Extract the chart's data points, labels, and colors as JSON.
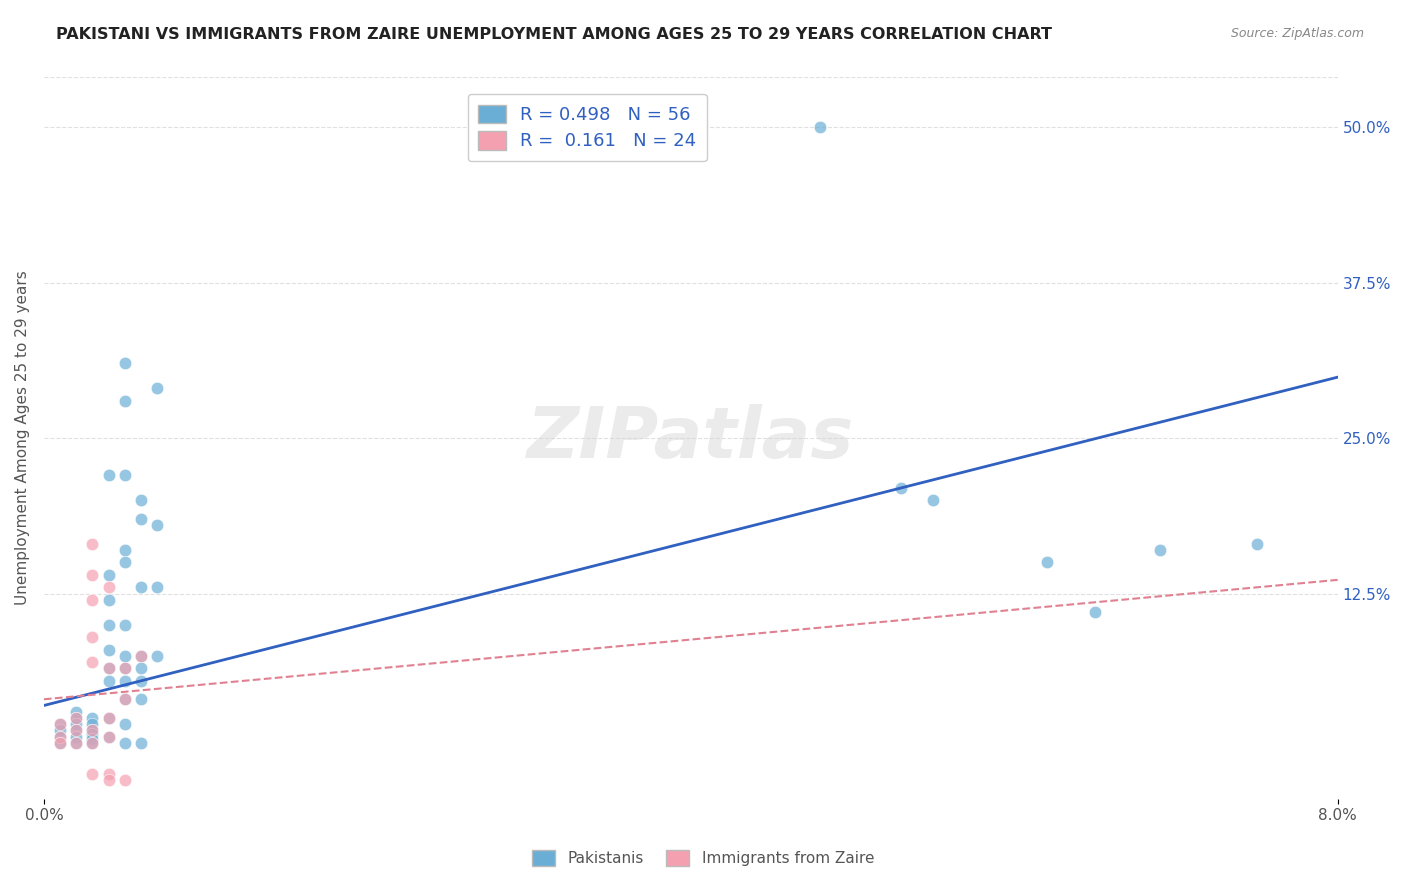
{
  "title": "PAKISTANI VS IMMIGRANTS FROM ZAIRE UNEMPLOYMENT AMONG AGES 25 TO 29 YEARS CORRELATION CHART",
  "source": "Source: ZipAtlas.com",
  "ylabel": "Unemployment Among Ages 25 to 29 years",
  "xlim": [
    0.0,
    0.08
  ],
  "ylim": [
    -0.04,
    0.54
  ],
  "ytick_labels": [
    "12.5%",
    "25.0%",
    "37.5%",
    "50.0%"
  ],
  "ytick_positions": [
    0.125,
    0.25,
    0.375,
    0.5
  ],
  "watermark": "ZIPatlas",
  "blue_color": "#6aaed6",
  "pink_color": "#f4a0b0",
  "blue_line_color": "#3060c0",
  "pink_line_color": "#e08090",
  "blue_points": [
    [
      0.001,
      0.02
    ],
    [
      0.001,
      0.015
    ],
    [
      0.001,
      0.01
    ],
    [
      0.001,
      0.005
    ],
    [
      0.002,
      0.03
    ],
    [
      0.002,
      0.025
    ],
    [
      0.002,
      0.02
    ],
    [
      0.002,
      0.015
    ],
    [
      0.002,
      0.01
    ],
    [
      0.002,
      0.005
    ],
    [
      0.003,
      0.025
    ],
    [
      0.003,
      0.02
    ],
    [
      0.003,
      0.015
    ],
    [
      0.003,
      0.012
    ],
    [
      0.003,
      0.008
    ],
    [
      0.003,
      0.005
    ],
    [
      0.004,
      0.22
    ],
    [
      0.004,
      0.14
    ],
    [
      0.004,
      0.12
    ],
    [
      0.004,
      0.1
    ],
    [
      0.004,
      0.08
    ],
    [
      0.004,
      0.065
    ],
    [
      0.004,
      0.055
    ],
    [
      0.004,
      0.025
    ],
    [
      0.004,
      0.01
    ],
    [
      0.005,
      0.31
    ],
    [
      0.005,
      0.28
    ],
    [
      0.005,
      0.22
    ],
    [
      0.005,
      0.16
    ],
    [
      0.005,
      0.15
    ],
    [
      0.005,
      0.1
    ],
    [
      0.005,
      0.075
    ],
    [
      0.005,
      0.065
    ],
    [
      0.005,
      0.055
    ],
    [
      0.005,
      0.04
    ],
    [
      0.005,
      0.02
    ],
    [
      0.005,
      0.005
    ],
    [
      0.006,
      0.2
    ],
    [
      0.006,
      0.185
    ],
    [
      0.006,
      0.13
    ],
    [
      0.006,
      0.075
    ],
    [
      0.006,
      0.065
    ],
    [
      0.006,
      0.055
    ],
    [
      0.006,
      0.04
    ],
    [
      0.006,
      0.005
    ],
    [
      0.007,
      0.29
    ],
    [
      0.007,
      0.18
    ],
    [
      0.007,
      0.13
    ],
    [
      0.007,
      0.075
    ],
    [
      0.048,
      0.5
    ],
    [
      0.053,
      0.21
    ],
    [
      0.055,
      0.2
    ],
    [
      0.062,
      0.15
    ],
    [
      0.065,
      0.11
    ],
    [
      0.069,
      0.16
    ],
    [
      0.075,
      0.165
    ]
  ],
  "pink_points": [
    [
      0.001,
      0.02
    ],
    [
      0.001,
      0.01
    ],
    [
      0.001,
      0.005
    ],
    [
      0.002,
      0.025
    ],
    [
      0.002,
      0.015
    ],
    [
      0.002,
      0.005
    ],
    [
      0.003,
      0.165
    ],
    [
      0.003,
      0.14
    ],
    [
      0.003,
      0.12
    ],
    [
      0.003,
      0.09
    ],
    [
      0.003,
      0.07
    ],
    [
      0.003,
      0.015
    ],
    [
      0.003,
      0.005
    ],
    [
      0.003,
      -0.02
    ],
    [
      0.004,
      0.13
    ],
    [
      0.004,
      0.065
    ],
    [
      0.004,
      0.025
    ],
    [
      0.004,
      0.01
    ],
    [
      0.004,
      -0.02
    ],
    [
      0.004,
      -0.025
    ],
    [
      0.005,
      0.065
    ],
    [
      0.005,
      0.04
    ],
    [
      0.005,
      -0.025
    ],
    [
      0.006,
      0.075
    ]
  ],
  "blue_trend_x": [
    0.0,
    0.08
  ],
  "blue_trend_y_intercept": 0.035,
  "blue_trend_slope": 3.3,
  "pink_trend_x": [
    0.0,
    0.08
  ],
  "pink_trend_y_intercept": 0.04,
  "pink_trend_slope": 1.2,
  "bg_color": "#ffffff",
  "grid_color": "#dddddd"
}
